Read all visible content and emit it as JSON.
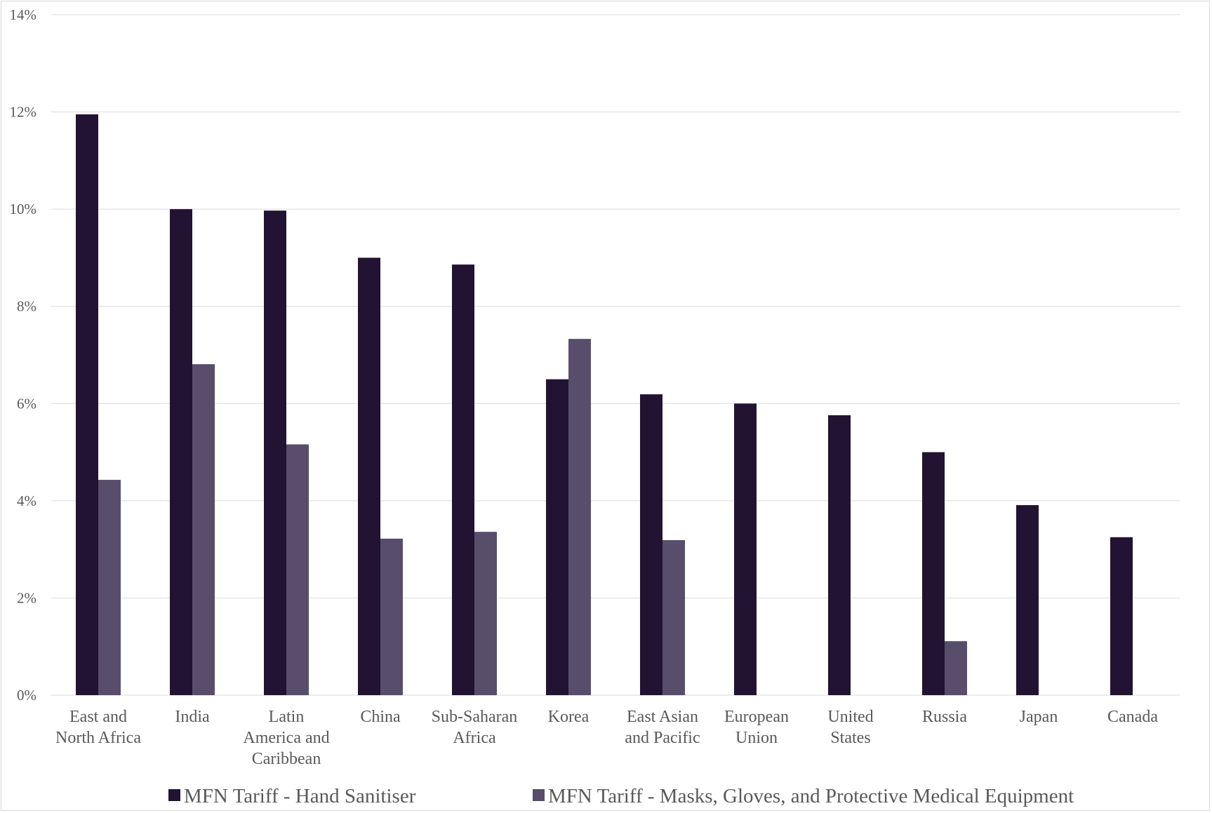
{
  "colors": {
    "series1": "#231332",
    "series2": "#594d6c",
    "grid": "#d9d9d9",
    "text": "#595959"
  },
  "chart_data": {
    "type": "bar",
    "title": "",
    "xlabel": "",
    "ylabel": "",
    "ylim": [
      0,
      14
    ],
    "yticks": [
      "0%",
      "2%",
      "4%",
      "6%",
      "8%",
      "10%",
      "12%",
      "14%"
    ],
    "ytick_values": [
      0,
      2,
      4,
      6,
      8,
      10,
      12,
      14
    ],
    "grid": true,
    "legend_position": "bottom",
    "categories": [
      [
        "East and",
        "North Africa"
      ],
      [
        "India"
      ],
      [
        "Latin",
        "America and",
        "Caribbean"
      ],
      [
        "China"
      ],
      [
        "Sub-Saharan",
        "Africa"
      ],
      [
        "Korea"
      ],
      [
        "East Asian",
        "and Pacific"
      ],
      [
        "European",
        "Union"
      ],
      [
        "United",
        "States"
      ],
      [
        "Russia"
      ],
      [
        "Japan"
      ],
      [
        "Canada"
      ]
    ],
    "series": [
      {
        "name": "MFN Tariff  - Hand Sanitiser",
        "values": [
          11.95,
          10.0,
          9.97,
          9.0,
          8.86,
          6.5,
          6.19,
          6.0,
          5.76,
          5.0,
          3.91,
          3.25
        ]
      },
      {
        "name": "MFN Tariff  - Masks, Gloves, and Protective Medical Equipment",
        "values": [
          4.43,
          6.81,
          5.16,
          3.22,
          3.36,
          7.33,
          3.19,
          0,
          0,
          1.11,
          0,
          0
        ]
      }
    ]
  }
}
